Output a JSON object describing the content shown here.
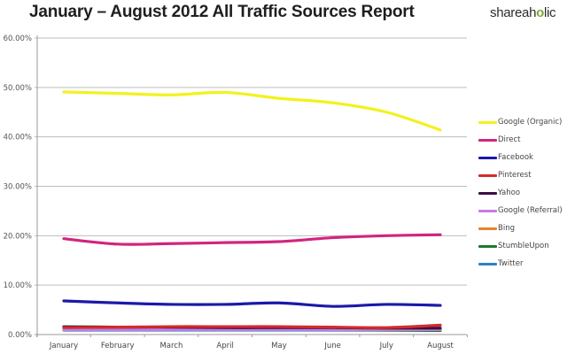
{
  "header": {
    "title": "January – August 2012 All Traffic Sources Report",
    "logo_left": "shareah",
    "logo_mark": "o",
    "logo_right": "lic"
  },
  "chart_data": {
    "type": "line",
    "title": "January – August 2012 All Traffic Sources Report",
    "xlabel": "",
    "ylabel": "",
    "ylim": [
      0,
      60
    ],
    "y_ticks": [
      "0.00%",
      "10.00%",
      "20.00%",
      "30.00%",
      "40.00%",
      "50.00%",
      "60.00%"
    ],
    "grid": true,
    "legend_position": "right",
    "categories": [
      "January",
      "February",
      "March",
      "April",
      "May",
      "June",
      "July",
      "August"
    ],
    "series": [
      {
        "name": "Google (Organic)",
        "color": "#f2f21e",
        "values": [
          49.1,
          48.8,
          48.5,
          49.0,
          47.8,
          46.9,
          45.0,
          41.4
        ]
      },
      {
        "name": "Direct",
        "color": "#d0257f",
        "values": [
          19.4,
          18.3,
          18.4,
          18.6,
          18.8,
          19.6,
          20.0,
          20.2
        ]
      },
      {
        "name": "Facebook",
        "color": "#1a1aa8",
        "values": [
          6.8,
          6.4,
          6.1,
          6.1,
          6.4,
          5.7,
          6.1,
          5.9
        ]
      },
      {
        "name": "Pinterest",
        "color": "#d42b2b",
        "values": [
          1.4,
          1.5,
          1.6,
          1.6,
          1.6,
          1.5,
          1.4,
          1.9
        ]
      },
      {
        "name": "Yahoo",
        "color": "#3b0f45",
        "values": [
          1.5,
          1.5,
          1.5,
          1.4,
          1.4,
          1.4,
          1.3,
          1.3
        ]
      },
      {
        "name": "Google (Referral)",
        "color": "#c77be0",
        "values": [
          1.0,
          1.0,
          1.0,
          1.0,
          1.0,
          1.0,
          1.0,
          1.0
        ]
      },
      {
        "name": "Bing",
        "color": "#e8832c",
        "values": [
          1.2,
          1.2,
          1.3,
          1.2,
          1.2,
          1.2,
          1.1,
          1.1
        ]
      },
      {
        "name": "StumbleUpon",
        "color": "#1e7a2a",
        "values": [
          1.6,
          1.5,
          1.3,
          1.2,
          1.1,
          1.0,
          0.9,
          0.8
        ]
      },
      {
        "name": "Twitter",
        "color": "#2b83c6",
        "values": [
          0.9,
          0.9,
          0.9,
          0.9,
          0.9,
          0.9,
          0.9,
          0.9
        ]
      }
    ]
  }
}
